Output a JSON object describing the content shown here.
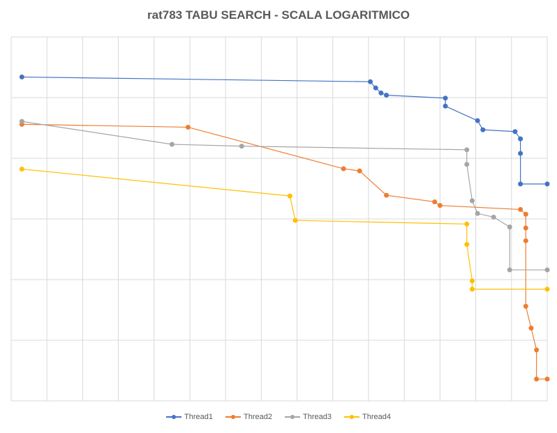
{
  "chart_data": {
    "type": "line",
    "title": "rat783 TABU SEARCH - SCALA LOGARITMICO",
    "xlabel": "",
    "ylabel": "",
    "y_scale": "log",
    "grid": true,
    "legend_position": "bottom",
    "xlim": [
      0,
      1
    ],
    "ylim": [
      0,
      1
    ],
    "series": [
      {
        "name": "Thread1",
        "color": "#4472C4",
        "points": [
          [
            0.02,
            0.89
          ],
          [
            0.67,
            0.877
          ],
          [
            0.68,
            0.86
          ],
          [
            0.69,
            0.846
          ],
          [
            0.7,
            0.84
          ],
          [
            0.81,
            0.832
          ],
          [
            0.81,
            0.81
          ],
          [
            0.87,
            0.77
          ],
          [
            0.88,
            0.745
          ],
          [
            0.94,
            0.74
          ],
          [
            0.95,
            0.72
          ],
          [
            0.95,
            0.68
          ],
          [
            0.95,
            0.596
          ],
          [
            1.0,
            0.596
          ]
        ]
      },
      {
        "name": "Thread2",
        "color": "#ED7D31",
        "points": [
          [
            0.02,
            0.76
          ],
          [
            0.33,
            0.752
          ],
          [
            0.62,
            0.638
          ],
          [
            0.65,
            0.632
          ],
          [
            0.7,
            0.565
          ],
          [
            0.79,
            0.547
          ],
          [
            0.8,
            0.537
          ],
          [
            0.95,
            0.526
          ],
          [
            0.96,
            0.513
          ],
          [
            0.96,
            0.475
          ],
          [
            0.96,
            0.44
          ],
          [
            0.96,
            0.26
          ],
          [
            0.97,
            0.2
          ],
          [
            0.98,
            0.14
          ],
          [
            0.98,
            0.06
          ],
          [
            1.0,
            0.06
          ]
        ]
      },
      {
        "name": "Thread3",
        "color": "#A5A5A5",
        "points": [
          [
            0.02,
            0.768
          ],
          [
            0.3,
            0.705
          ],
          [
            0.43,
            0.7
          ],
          [
            0.85,
            0.69
          ],
          [
            0.85,
            0.65
          ],
          [
            0.86,
            0.55
          ],
          [
            0.87,
            0.515
          ],
          [
            0.9,
            0.505
          ],
          [
            0.93,
            0.478
          ],
          [
            0.93,
            0.36
          ],
          [
            1.0,
            0.36
          ]
        ]
      },
      {
        "name": "Thread4",
        "color": "#FFC000",
        "points": [
          [
            0.02,
            0.637
          ],
          [
            0.52,
            0.563
          ],
          [
            0.53,
            0.496
          ],
          [
            0.85,
            0.486
          ],
          [
            0.85,
            0.43
          ],
          [
            0.86,
            0.33
          ],
          [
            0.86,
            0.307
          ],
          [
            1.0,
            0.307
          ]
        ]
      }
    ]
  }
}
